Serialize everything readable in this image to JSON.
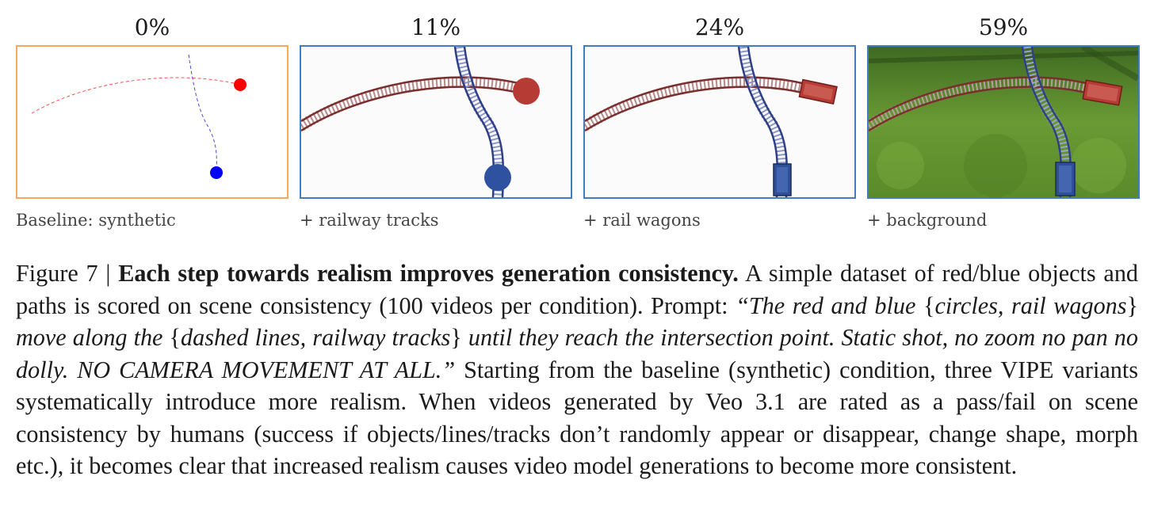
{
  "panels": [
    {
      "percent": "0%",
      "label": "Baseline: synthetic",
      "border_color": "#f4a95b"
    },
    {
      "percent": "11%",
      "label": "+ railway tracks",
      "border_color": "#3f7fbf"
    },
    {
      "percent": "24%",
      "label": "+ rail wagons",
      "border_color": "#3f7fbf"
    },
    {
      "percent": "59%",
      "label": "+ background",
      "border_color": "#3f7fbf"
    }
  ],
  "caption": {
    "figure_label": "Figure 7 | ",
    "bold_title": "Each step towards realism improves generation consistency.",
    "text_1": " A simple dataset of red/blue objects and paths is scored on scene consistency (100 videos per condition). Prompt: ",
    "prompt_open": "“The red and blue ",
    "brace_1_open": "{",
    "brace_1_content": "circles, rail wagons",
    "brace_1_close": "}",
    "prompt_mid": " move along the ",
    "brace_2_open": "{",
    "brace_2_content": "dashed lines, railway tracks",
    "brace_2_close": "}",
    "prompt_end": " until they reach the intersection point. Static shot, no zoom no pan no dolly. NO CAMERA MOVEMENT AT ALL.”",
    "text_2": " Starting from the baseline (synthetic) condition, three VIPE variants systematically introduce more realism. When videos generated by Veo 3.1 are rated as a pass/fail on scene consistency by humans (success if objects/lines/tracks don’t randomly appear or disappear, change shape, morph etc.), it becomes clear that increased realism causes video model generations to become more consistent."
  },
  "colors": {
    "red_object": "#ff0000",
    "blue_object": "#0000ff",
    "red_track": "#8b3a3a",
    "blue_track": "#3a4f9a",
    "grass": "#5f8c2e"
  }
}
